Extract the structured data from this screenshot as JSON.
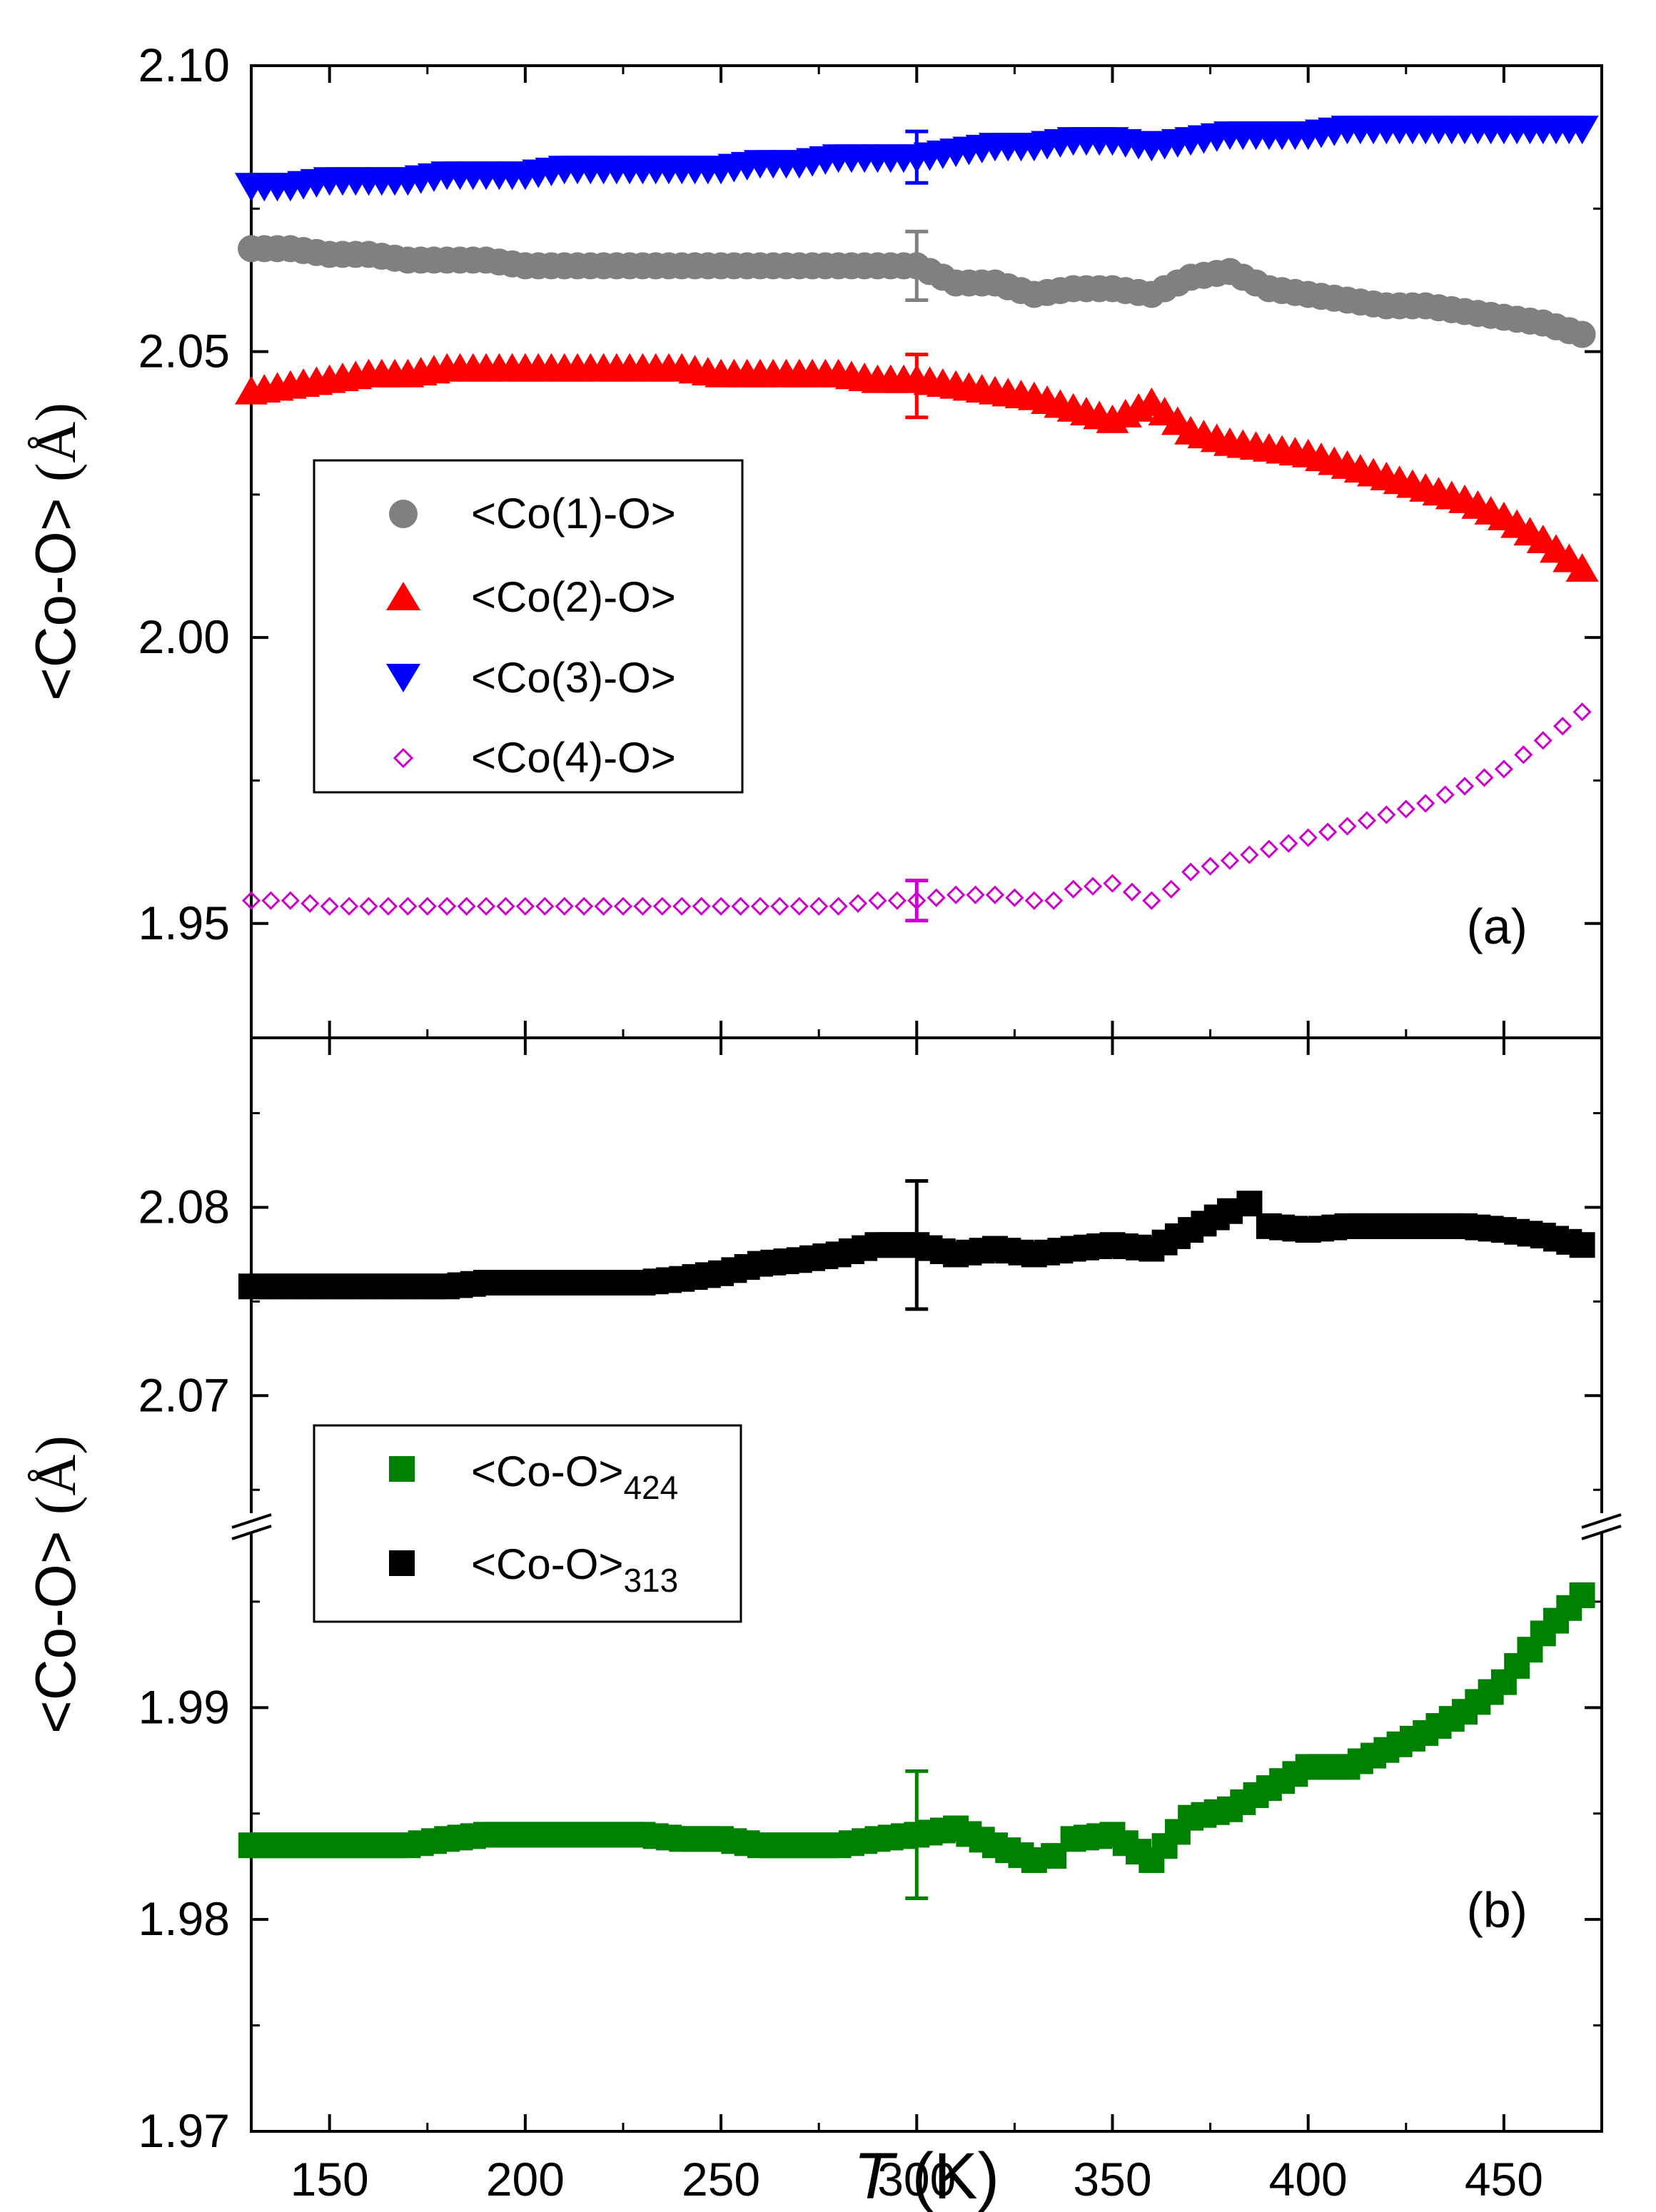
{
  "xaxis": {
    "label_italic": "T",
    "label_rest": " (K)",
    "range": [
      130,
      475
    ],
    "ticks": [
      150,
      200,
      250,
      300,
      350,
      400,
      450
    ],
    "tick_labels": [
      "150",
      "200",
      "250",
      "300",
      "350",
      "400",
      "450"
    ]
  },
  "chart_data": [
    {
      "type": "scatter",
      "panel_label": "(a)",
      "ylabel_main": "<Co-O>",
      "ylabel_unit": "(Å)",
      "ylim": [
        1.93,
        2.1
      ],
      "yticks": [
        1.95,
        2.0,
        2.05,
        2.1
      ],
      "ytick_labels": [
        "1.95",
        "2.00",
        "2.05",
        "2.10"
      ],
      "legend_position": "center-left",
      "series": [
        {
          "name": "<Co(1)-O>",
          "marker": "circle",
          "color": "#808080",
          "x": [
            130,
            140,
            150,
            160,
            170,
            180,
            190,
            200,
            210,
            220,
            230,
            240,
            250,
            260,
            270,
            280,
            290,
            300,
            310,
            320,
            330,
            340,
            350,
            360,
            370,
            380,
            390,
            400,
            410,
            420,
            430,
            440,
            450,
            460,
            470
          ],
          "y": [
            2.068,
            2.068,
            2.067,
            2.067,
            2.066,
            2.066,
            2.066,
            2.065,
            2.065,
            2.065,
            2.065,
            2.065,
            2.065,
            2.065,
            2.065,
            2.065,
            2.065,
            2.065,
            2.062,
            2.062,
            2.06,
            2.061,
            2.061,
            2.06,
            2.063,
            2.064,
            2.061,
            2.06,
            2.059,
            2.058,
            2.058,
            2.057,
            2.056,
            2.055,
            2.053
          ],
          "error_bar": {
            "x": 300,
            "y": 2.065,
            "err": 0.006
          }
        },
        {
          "name": "<Co(2)-O>",
          "marker": "triangle-up",
          "color": "#ff0000",
          "x": [
            130,
            140,
            150,
            160,
            170,
            180,
            190,
            200,
            210,
            220,
            230,
            240,
            250,
            260,
            270,
            280,
            290,
            300,
            310,
            320,
            330,
            340,
            350,
            360,
            370,
            380,
            390,
            400,
            410,
            420,
            430,
            440,
            450,
            460,
            470
          ],
          "y": [
            2.043,
            2.044,
            2.045,
            2.046,
            2.046,
            2.047,
            2.047,
            2.047,
            2.047,
            2.047,
            2.047,
            2.047,
            2.046,
            2.046,
            2.046,
            2.046,
            2.045,
            2.045,
            2.044,
            2.043,
            2.042,
            2.04,
            2.038,
            2.041,
            2.036,
            2.034,
            2.033,
            2.032,
            2.03,
            2.028,
            2.026,
            2.024,
            2.021,
            2.017,
            2.012
          ],
          "error_bar": {
            "x": 300,
            "y": 2.044,
            "err": 0.0055
          }
        },
        {
          "name": "<Co(3)-O>",
          "marker": "triangle-down",
          "color": "#0000ff",
          "x": [
            130,
            140,
            150,
            160,
            170,
            180,
            190,
            200,
            210,
            220,
            230,
            240,
            250,
            260,
            270,
            280,
            290,
            300,
            310,
            320,
            330,
            340,
            350,
            360,
            370,
            380,
            390,
            400,
            410,
            420,
            430,
            440,
            450,
            460,
            470
          ],
          "y": [
            2.079,
            2.079,
            2.08,
            2.08,
            2.08,
            2.081,
            2.081,
            2.081,
            2.082,
            2.082,
            2.082,
            2.082,
            2.082,
            2.083,
            2.083,
            2.084,
            2.084,
            2.084,
            2.085,
            2.086,
            2.086,
            2.087,
            2.087,
            2.086,
            2.087,
            2.088,
            2.088,
            2.088,
            2.089,
            2.089,
            2.089,
            2.089,
            2.089,
            2.089,
            2.089
          ],
          "error_bar": {
            "x": 300,
            "y": 2.084,
            "err": 0.0045
          }
        },
        {
          "name": "<Co(4)-O>",
          "marker": "diamond-open",
          "color": "#cc00cc",
          "x": [
            130,
            140,
            150,
            160,
            170,
            180,
            190,
            200,
            210,
            220,
            230,
            240,
            250,
            260,
            270,
            280,
            290,
            300,
            310,
            320,
            330,
            335,
            340,
            350,
            360,
            365,
            370,
            380,
            390,
            400,
            410,
            420,
            430,
            440,
            450,
            460,
            470
          ],
          "y": [
            1.954,
            1.954,
            1.953,
            1.953,
            1.953,
            1.953,
            1.953,
            1.953,
            1.953,
            1.953,
            1.953,
            1.953,
            1.953,
            1.953,
            1.953,
            1.953,
            1.954,
            1.954,
            1.955,
            1.955,
            1.954,
            1.954,
            1.956,
            1.957,
            1.954,
            1.956,
            1.959,
            1.961,
            1.963,
            1.965,
            1.967,
            1.969,
            1.971,
            1.974,
            1.977,
            1.982,
            1.987
          ],
          "error_bar": {
            "x": 300,
            "y": 1.954,
            "err": 0.0035
          }
        }
      ]
    },
    {
      "type": "scatter",
      "panel_label": "(b)",
      "ylabel_main": "<Co-O>",
      "ylabel_unit": "(Å)",
      "y_axis_break": true,
      "ylim_lower": [
        1.97,
        1.9985
      ],
      "ylim_upper": [
        2.063,
        2.089
      ],
      "yticks": [
        1.97,
        1.98,
        1.99,
        2.07,
        2.08
      ],
      "ytick_labels": [
        "1.97",
        "1.98",
        "1.99",
        "2.07",
        "2.08"
      ],
      "legend_position": "center-left",
      "series": [
        {
          "name": "<Co-O>",
          "subscript": "424",
          "marker": "square",
          "color": "#008000",
          "x": [
            130,
            140,
            150,
            160,
            170,
            180,
            190,
            200,
            210,
            220,
            230,
            240,
            250,
            260,
            270,
            280,
            290,
            300,
            310,
            320,
            330,
            335,
            340,
            350,
            360,
            370,
            380,
            390,
            400,
            410,
            420,
            430,
            440,
            450,
            460,
            470
          ],
          "y": [
            1.9835,
            1.9835,
            1.9835,
            1.9835,
            1.9835,
            1.9838,
            1.984,
            1.984,
            1.984,
            1.984,
            1.984,
            1.9838,
            1.9838,
            1.9835,
            1.9835,
            1.9835,
            1.9838,
            1.984,
            1.9843,
            1.9835,
            1.9828,
            1.983,
            1.9838,
            1.984,
            1.9828,
            1.9848,
            1.9852,
            1.9862,
            1.9872,
            1.9872,
            1.988,
            1.9888,
            1.9898,
            1.9912,
            1.9935,
            1.9953
          ],
          "error_bar": {
            "x": 300,
            "y": 1.984,
            "err": 0.003
          }
        },
        {
          "name": "<Co-O>",
          "subscript": "313",
          "marker": "square",
          "color": "#000000",
          "x": [
            130,
            140,
            150,
            160,
            170,
            180,
            190,
            200,
            210,
            220,
            230,
            240,
            250,
            260,
            270,
            280,
            290,
            300,
            310,
            320,
            330,
            340,
            350,
            360,
            370,
            380,
            385,
            390,
            400,
            410,
            420,
            430,
            440,
            450,
            460,
            470
          ],
          "y": [
            2.0758,
            2.0758,
            2.0758,
            2.0758,
            2.0758,
            2.0758,
            2.076,
            2.076,
            2.076,
            2.076,
            2.076,
            2.0762,
            2.0765,
            2.077,
            2.0772,
            2.0775,
            2.078,
            2.078,
            2.0775,
            2.0778,
            2.0775,
            2.0778,
            2.078,
            2.0778,
            2.0788,
            2.0798,
            2.0802,
            2.079,
            2.0788,
            2.079,
            2.079,
            2.079,
            2.079,
            2.0788,
            2.0785,
            2.078
          ],
          "error_bar": {
            "x": 300,
            "y": 2.078,
            "err": 0.0034
          }
        }
      ]
    }
  ]
}
